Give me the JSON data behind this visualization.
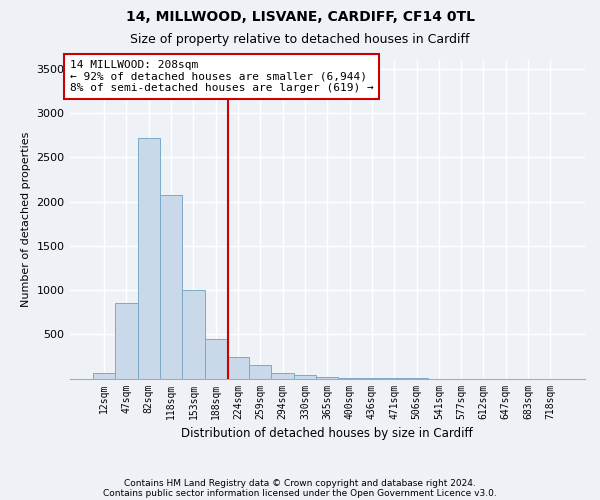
{
  "title1": "14, MILLWOOD, LISVANE, CARDIFF, CF14 0TL",
  "title2": "Size of property relative to detached houses in Cardiff",
  "xlabel": "Distribution of detached houses by size in Cardiff",
  "ylabel": "Number of detached properties",
  "bar_color": "#c9d9ea",
  "bar_edge_color": "#7aaac8",
  "categories": [
    "12sqm",
    "47sqm",
    "82sqm",
    "118sqm",
    "153sqm",
    "188sqm",
    "224sqm",
    "259sqm",
    "294sqm",
    "330sqm",
    "365sqm",
    "400sqm",
    "436sqm",
    "471sqm",
    "506sqm",
    "541sqm",
    "577sqm",
    "612sqm",
    "647sqm",
    "683sqm",
    "718sqm"
  ],
  "values": [
    60,
    850,
    2720,
    2070,
    1000,
    450,
    240,
    155,
    60,
    40,
    12,
    8,
    5,
    3,
    2,
    0,
    0,
    0,
    0,
    0,
    0
  ],
  "annotation_text": "14 MILLWOOD: 208sqm\n← 92% of detached houses are smaller (6,944)\n8% of semi-detached houses are larger (619) →",
  "annotation_box_color": "#ffffff",
  "annotation_box_edge": "#cc0000",
  "ylim": [
    0,
    3600
  ],
  "yticks": [
    0,
    500,
    1000,
    1500,
    2000,
    2500,
    3000,
    3500
  ],
  "footer1": "Contains HM Land Registry data © Crown copyright and database right 2024.",
  "footer2": "Contains public sector information licensed under the Open Government Licence v3.0.",
  "bg_color": "#eef2f7",
  "plot_bg_color": "#eef2f7",
  "grid_color": "#ffffff",
  "red_line_color": "#cc0000"
}
